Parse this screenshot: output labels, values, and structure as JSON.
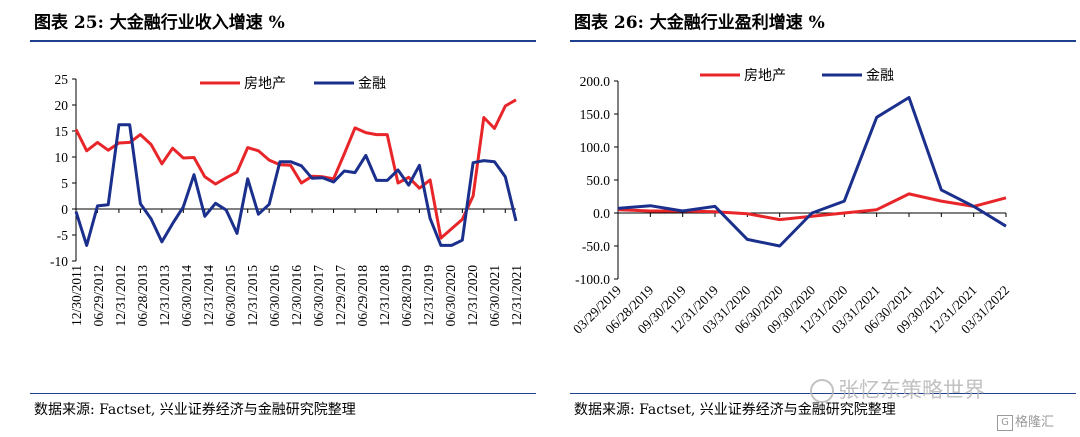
{
  "left": {
    "title": "图表 25:  大金融行业收入增速  %",
    "source": "数据来源:  Factset, 兴业证券经济与金融研究院整理"
  },
  "right": {
    "title": "图表 26:  大金融行业盈利增速  %",
    "source": "数据来源:  Factset, 兴业证券经济与金融研究院整理"
  },
  "watermark": {
    "text": "张忆东策略世界"
  },
  "logo": {
    "mark": "G",
    "text": "格隆汇"
  },
  "colors": {
    "real_estate": "#e8262a",
    "finance": "#1b2f8c",
    "rule": "#1f3f8f"
  },
  "chart_data": [
    {
      "type": "line",
      "title": "大金融行业收入增速  %",
      "ylim": [
        -10,
        25
      ],
      "yticks": [
        -10,
        -5,
        0,
        5,
        10,
        15,
        20,
        25
      ],
      "ytick_labels": [
        "-10",
        "-5",
        "0",
        "5",
        "10",
        "15",
        "20",
        "25"
      ],
      "x_labels": [
        "12/30/2011",
        "06/29/2012",
        "12/31/2012",
        "06/28/2013",
        "12/31/2013",
        "06/30/2014",
        "12/31/2014",
        "06/30/2015",
        "12/31/2015",
        "06/30/2016",
        "12/30/2016",
        "06/30/2017",
        "12/29/2017",
        "06/29/2018",
        "12/31/2018",
        "06/28/2019",
        "12/31/2019",
        "06/30/2020",
        "12/31/2020",
        "06/30/2021",
        "12/31/2021"
      ],
      "legend": [
        "房地产",
        "金融"
      ],
      "legend_position": "top",
      "grid": false,
      "series": [
        {
          "name": "房地产",
          "color": "#e8262a",
          "values": [
            15.3,
            11.2,
            12.8,
            11.3,
            12.7,
            12.8,
            14.3,
            12.4,
            8.7,
            11.7,
            9.8,
            9.9,
            6.2,
            4.8,
            6.0,
            7.1,
            11.8,
            11.2,
            9.4,
            8.5,
            8.4,
            5.0,
            6.3,
            6.2,
            5.8,
            10.6,
            15.6,
            14.7,
            14.3,
            14.3,
            5.0,
            6.1,
            4.0,
            5.6,
            -5.6,
            -3.8,
            -2.0,
            2.5,
            17.6,
            15.5,
            19.8,
            21.0
          ]
        },
        {
          "name": "金融",
          "color": "#1b2f8c",
          "values": [
            -0.5,
            -7.0,
            0.6,
            0.8,
            16.2,
            16.2,
            1.0,
            -1.9,
            -6.3,
            -2.8,
            0.4,
            6.6,
            -1.4,
            1.1,
            -0.2,
            -4.7,
            5.8,
            -1.0,
            0.9,
            9.1,
            9.1,
            8.3,
            5.9,
            6.0,
            5.2,
            7.3,
            7.0,
            10.3,
            5.5,
            5.5,
            7.5,
            4.6,
            8.4,
            -1.8,
            -7.0,
            -7.0,
            -6.0,
            8.9,
            9.3,
            9.1,
            6.2,
            -2.3
          ]
        }
      ]
    },
    {
      "type": "line",
      "title": "大金融行业盈利增速  %",
      "ylim": [
        -100,
        200
      ],
      "yticks": [
        -100,
        -50,
        0,
        50,
        100,
        150,
        200
      ],
      "ytick_labels": [
        "-100.0",
        "-50.0",
        "0.0",
        "50.0",
        "100.0",
        "150.0",
        "200.0"
      ],
      "x_labels": [
        "03/29/2019",
        "06/28/2019",
        "09/30/2019",
        "12/31/2019",
        "03/31/2020",
        "06/30/2020",
        "09/30/2020",
        "12/31/2020",
        "03/31/2021",
        "06/30/2021",
        "09/30/2021",
        "12/31/2021",
        "03/31/2022"
      ],
      "legend": [
        "房地产",
        "金融"
      ],
      "legend_position": "top",
      "grid": false,
      "series": [
        {
          "name": "房地产",
          "color": "#e8262a",
          "values": [
            5.0,
            3.0,
            3.0,
            2.0,
            -1.0,
            -10.0,
            -5.0,
            0.0,
            5.0,
            29.0,
            18.0,
            10.0,
            23.0
          ]
        },
        {
          "name": "金融",
          "color": "#1b2f8c",
          "values": [
            7.0,
            11.0,
            3.0,
            10.0,
            -40.0,
            -50.0,
            0.0,
            18.0,
            145.0,
            175.0,
            35.0,
            10.0,
            -20.0
          ]
        }
      ]
    }
  ]
}
